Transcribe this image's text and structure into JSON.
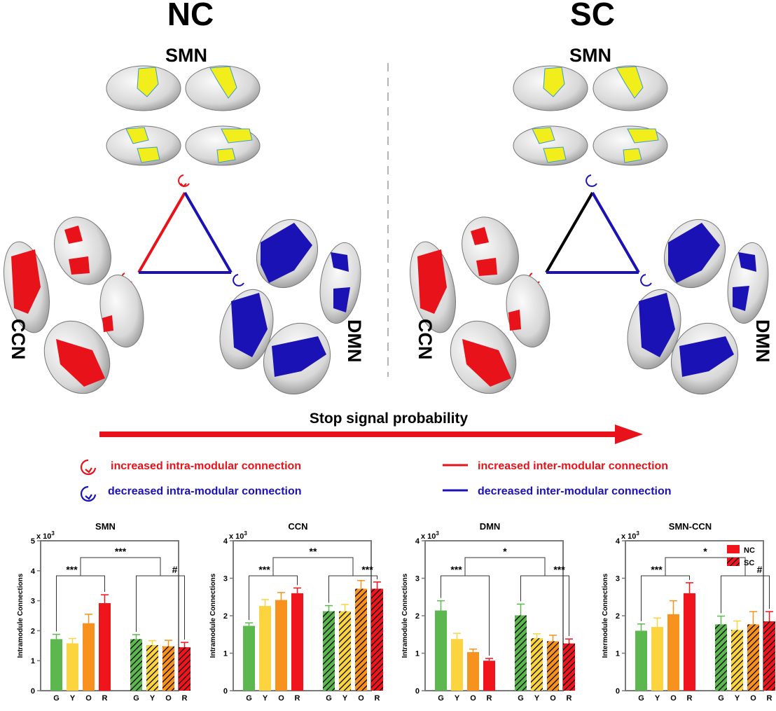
{
  "panels": {
    "left_title": "NC",
    "right_title": "SC",
    "top_network": "SMN",
    "left_network": "CCN",
    "right_network": "DMN"
  },
  "arrow_label": "Stop signal probability",
  "legend": {
    "increased_intra": "increased intra-modular connection",
    "decreased_intra": "decreased intra-modular connection",
    "increased_inter": "increased inter-modular connection",
    "decreased_inter": "decreased inter-modular connection"
  },
  "colors": {
    "red": "#e8131a",
    "blue": "#1a12b4",
    "black": "#000000",
    "yellow": "#f2ee1c",
    "green": "#5cb84e",
    "yellow_bar": "#fcd43f",
    "orange": "#f7921e",
    "red_bar": "#f0151d"
  },
  "chart_data": [
    {
      "type": "bar",
      "title": "SMN",
      "exponent": "x 10",
      "exponent_power": "3",
      "ylabel": "Intramodule Connections",
      "ylim": [
        0,
        5
      ],
      "yticks": [
        "0",
        "1",
        "2",
        "3",
        "4",
        "5"
      ],
      "categories": [
        "G",
        "Y",
        "O",
        "R"
      ],
      "series": [
        {
          "name": "NC",
          "values": [
            1.72,
            1.58,
            2.25,
            2.92
          ],
          "errors": [
            0.16,
            0.16,
            0.3,
            0.28
          ]
        },
        {
          "name": "SC",
          "values": [
            1.72,
            1.52,
            1.48,
            1.45
          ],
          "errors": [
            0.15,
            0.15,
            0.2,
            0.16
          ]
        }
      ],
      "annotations": {
        "left": "***",
        "top": "***",
        "right": "#"
      }
    },
    {
      "type": "bar",
      "title": "CCN",
      "exponent": "x 10",
      "exponent_power": "3",
      "ylabel": "Intramodule Connections",
      "ylim": [
        0,
        4
      ],
      "yticks": [
        "0",
        "1",
        "2",
        "3",
        "4"
      ],
      "categories": [
        "G",
        "Y",
        "O",
        "R"
      ],
      "series": [
        {
          "name": "NC",
          "values": [
            1.73,
            2.26,
            2.42,
            2.6
          ],
          "errors": [
            0.08,
            0.17,
            0.2,
            0.14
          ]
        },
        {
          "name": "SC",
          "values": [
            2.12,
            2.12,
            2.72,
            2.72
          ],
          "errors": [
            0.15,
            0.18,
            0.22,
            0.18
          ]
        }
      ],
      "annotations": {
        "left": "***",
        "top": "**",
        "right": "***"
      }
    },
    {
      "type": "bar",
      "title": "DMN",
      "exponent": "x 10",
      "exponent_power": "3",
      "ylabel": "Intramodule Connections",
      "ylim": [
        0,
        4
      ],
      "yticks": [
        "0",
        "1",
        "2",
        "3",
        "4"
      ],
      "categories": [
        "G",
        "Y",
        "O",
        "R"
      ],
      "series": [
        {
          "name": "NC",
          "values": [
            2.14,
            1.38,
            1.03,
            0.8
          ],
          "errors": [
            0.26,
            0.15,
            0.08,
            0.06
          ]
        },
        {
          "name": "SC",
          "values": [
            2.01,
            1.4,
            1.32,
            1.26
          ],
          "errors": [
            0.3,
            0.12,
            0.16,
            0.12
          ]
        }
      ],
      "annotations": {
        "left": "***",
        "top": "*",
        "right": "***"
      }
    },
    {
      "type": "bar",
      "title": "SMN-CCN",
      "exponent": "x 10",
      "exponent_power": "3",
      "ylabel": "Intermodule Connections",
      "ylim": [
        0,
        4
      ],
      "yticks": [
        "0",
        "1",
        "2",
        "3",
        "4"
      ],
      "categories": [
        "G",
        "Y",
        "O",
        "R"
      ],
      "series": [
        {
          "name": "NC",
          "values": [
            1.6,
            1.7,
            2.04,
            2.6
          ],
          "errors": [
            0.18,
            0.24,
            0.36,
            0.28
          ]
        },
        {
          "name": "SC",
          "values": [
            1.77,
            1.62,
            1.77,
            1.85
          ],
          "errors": [
            0.22,
            0.24,
            0.34,
            0.26
          ]
        }
      ],
      "annotations": {
        "left": "***",
        "top": "*",
        "right": "#"
      },
      "legend": [
        "NC",
        "SC"
      ]
    }
  ]
}
